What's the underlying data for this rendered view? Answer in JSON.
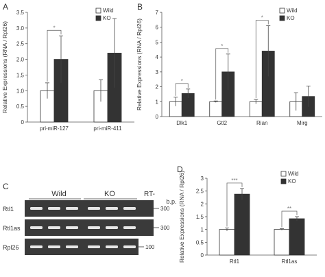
{
  "panels": {
    "a": "A",
    "b": "B",
    "c": "C",
    "d": "D"
  },
  "colors": {
    "wild": "#ffffff",
    "ko": "#333333",
    "axis": "#555555",
    "gel_bg": "#3a3a3a",
    "gel_band": "#e6e6e6"
  },
  "chart_data": [
    {
      "type": "bar",
      "panel": "A",
      "ylabel": "Relative Expressions (RNA / Rpl26)",
      "ylim": [
        0,
        3.5
      ],
      "yticks": [
        "0",
        "0.5",
        "1.0",
        "1.5",
        "2.0",
        "2.5",
        "3.0",
        "3.5"
      ],
      "categories": [
        "pri-miR-127",
        "pri-miR-411"
      ],
      "series": [
        {
          "name": "Wild",
          "values": [
            1.0,
            1.0
          ],
          "errors": [
            0.25,
            0.35
          ]
        },
        {
          "name": "KO",
          "values": [
            2.0,
            2.2
          ],
          "errors": [
            0.75,
            1.1
          ]
        }
      ],
      "significance": [
        {
          "category": "pri-miR-127",
          "label": "*"
        }
      ],
      "legend": "top-right"
    },
    {
      "type": "bar",
      "panel": "B",
      "ylabel": "Relative Expressions (RNA / Rpl26)",
      "ylim": [
        0,
        7
      ],
      "yticks": [
        "0",
        "1",
        "2",
        "3",
        "4",
        "5",
        "6",
        "7"
      ],
      "categories": [
        "Dlk1",
        "Gtl2",
        "Rian",
        "Mirg"
      ],
      "series": [
        {
          "name": "Wild",
          "values": [
            1.0,
            1.0,
            1.0,
            1.0
          ],
          "errors": [
            0.3,
            0.05,
            0.15,
            0.6
          ]
        },
        {
          "name": "KO",
          "values": [
            1.55,
            3.0,
            4.4,
            1.35
          ],
          "errors": [
            0.3,
            1.2,
            1.7,
            0.7
          ]
        }
      ],
      "significance": [
        {
          "category": "Dlk1",
          "label": "*"
        },
        {
          "category": "Gtl2",
          "label": "*"
        },
        {
          "category": "Rian",
          "label": "*"
        }
      ],
      "legend": "top-right"
    },
    {
      "type": "bar",
      "panel": "D",
      "ylabel": "Relative Expressions (RNA / Rpl26)",
      "ylim": [
        0,
        3
      ],
      "yticks": [
        "0",
        "0.5",
        "1",
        "1.5",
        "2",
        "2.5",
        "3"
      ],
      "categories": [
        "Rtl1",
        "Rtl1as"
      ],
      "series": [
        {
          "name": "Wild",
          "values": [
            1.0,
            1.0
          ],
          "errors": [
            0.06,
            0.03
          ]
        },
        {
          "name": "KO",
          "values": [
            2.38,
            1.42
          ],
          "errors": [
            0.22,
            0.08
          ]
        }
      ],
      "significance": [
        {
          "category": "Rtl1",
          "label": "***"
        },
        {
          "category": "Rtl1as",
          "label": "**"
        }
      ],
      "legend": "top-right"
    }
  ],
  "gel": {
    "groups": [
      "Wild",
      "KO"
    ],
    "rt_label": "RT-",
    "bp_label": "b.p.",
    "rows": [
      {
        "name": "Rtl1",
        "size": "300"
      },
      {
        "name": "Rtl1as",
        "size": "300"
      },
      {
        "name": "Rpl26",
        "size": "100"
      }
    ]
  }
}
